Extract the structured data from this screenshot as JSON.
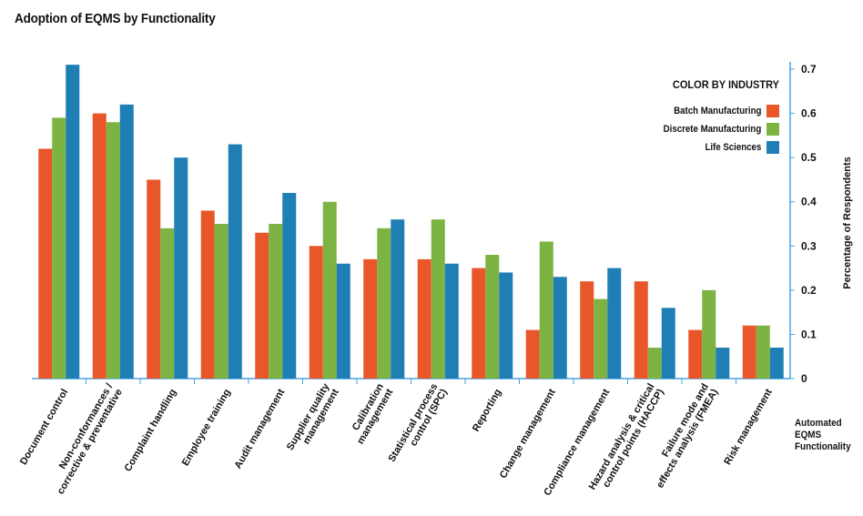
{
  "chart_data": {
    "type": "bar",
    "title": "Adoption of EQMS by Functionality",
    "xlabel": "Automated\nEQMS\nFunctionality",
    "ylabel": "Percentage of Respondents",
    "ylim": [
      0,
      0.7
    ],
    "yticks": [
      "0",
      "0.1",
      "0.2",
      "0.3",
      "0.4",
      "0.5",
      "0.6",
      "0.7"
    ],
    "grid": false,
    "legend_title": "COLOR BY INDUSTRY",
    "legend_position": "top-right",
    "categories": [
      "Document control",
      "Non-conformances / corrective & preventative",
      "Complaint handling",
      "Employee training",
      "Audit management",
      "Supplier quality management",
      "Calibration management",
      "Statistical process control (SPC)",
      "Reporting",
      "Change management",
      "Compliance management",
      "Hazard analysis & critical control points (HACCP)",
      "Failure mode and effects analysis (FMEA)",
      "Risk management"
    ],
    "category_lines": [
      [
        "Document control"
      ],
      [
        "Non-conformances /",
        "corrective & preventative"
      ],
      [
        "Complaint handling"
      ],
      [
        "Employee training"
      ],
      [
        "Audit management"
      ],
      [
        "Supplier quality",
        "management"
      ],
      [
        "Calibration",
        "management"
      ],
      [
        "Statistical process",
        "control (SPC)"
      ],
      [
        "Reporting"
      ],
      [
        "Change management"
      ],
      [
        "Compliance management"
      ],
      [
        "Hazard analysis & critical",
        "control points (HACCP)"
      ],
      [
        "Failure mode and",
        "effects analysis (FMEA)"
      ],
      [
        "Risk management"
      ]
    ],
    "series": [
      {
        "name": "Batch Manufacturing",
        "color": "#e8562a",
        "values": [
          0.52,
          0.6,
          0.45,
          0.38,
          0.33,
          0.3,
          0.27,
          0.27,
          0.25,
          0.11,
          0.22,
          0.22,
          0.11,
          0.12
        ]
      },
      {
        "name": "Discrete Manufacturing",
        "color": "#7cb342",
        "values": [
          0.59,
          0.58,
          0.34,
          0.35,
          0.35,
          0.4,
          0.34,
          0.36,
          0.28,
          0.31,
          0.18,
          0.07,
          0.2,
          0.12
        ]
      },
      {
        "name": "Life Sciences",
        "color": "#1f7fb5",
        "values": [
          0.71,
          0.62,
          0.5,
          0.53,
          0.42,
          0.26,
          0.36,
          0.26,
          0.24,
          0.23,
          0.25,
          0.16,
          0.07,
          0.07
        ]
      }
    ],
    "colors": {
      "axis": "#4aa3df"
    }
  }
}
